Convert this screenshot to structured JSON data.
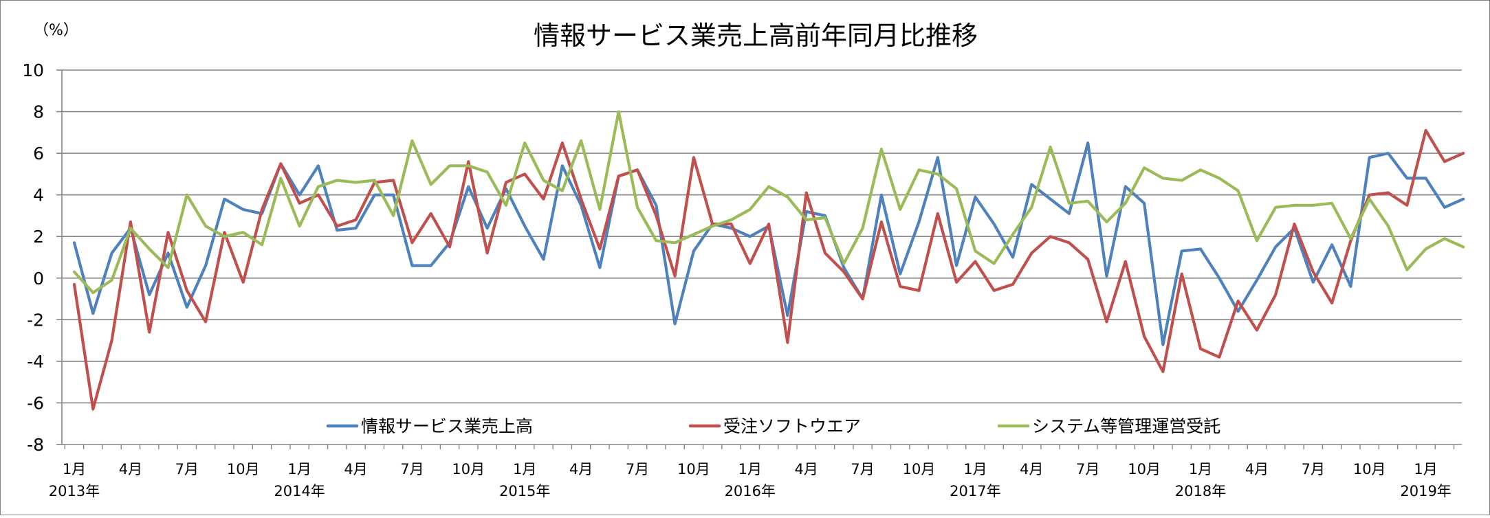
{
  "chart_data": {
    "type": "line",
    "title": "情報サービス業売上高前年同月比推移",
    "ylabel": "（%）",
    "xlabel": "",
    "ylim": [
      -8,
      10
    ],
    "yticks": [
      "10",
      "8",
      "6",
      "4",
      "2",
      "0",
      "-2",
      "-4",
      "-6",
      "-8"
    ],
    "grid": true,
    "legend_position": "bottom-inside",
    "x_tick_labels": [
      {
        "index": 0,
        "month": "1月",
        "year": "2013年"
      },
      {
        "index": 3,
        "month": "4月",
        "year": ""
      },
      {
        "index": 6,
        "month": "7月",
        "year": ""
      },
      {
        "index": 9,
        "month": "10月",
        "year": ""
      },
      {
        "index": 12,
        "month": "1月",
        "year": "2014年"
      },
      {
        "index": 15,
        "month": "4月",
        "year": ""
      },
      {
        "index": 18,
        "month": "7月",
        "year": ""
      },
      {
        "index": 21,
        "month": "10月",
        "year": ""
      },
      {
        "index": 24,
        "month": "1月",
        "year": "2015年"
      },
      {
        "index": 27,
        "month": "4月",
        "year": ""
      },
      {
        "index": 30,
        "month": "7月",
        "year": ""
      },
      {
        "index": 33,
        "month": "10月",
        "year": ""
      },
      {
        "index": 36,
        "month": "1月",
        "year": "2016年"
      },
      {
        "index": 39,
        "month": "4月",
        "year": ""
      },
      {
        "index": 42,
        "month": "7月",
        "year": ""
      },
      {
        "index": 45,
        "month": "10月",
        "year": ""
      },
      {
        "index": 48,
        "month": "1月",
        "year": "2017年"
      },
      {
        "index": 51,
        "month": "4月",
        "year": ""
      },
      {
        "index": 54,
        "month": "7月",
        "year": ""
      },
      {
        "index": 57,
        "month": "10月",
        "year": ""
      },
      {
        "index": 60,
        "month": "1月",
        "year": "2018年"
      },
      {
        "index": 63,
        "month": "4月",
        "year": ""
      },
      {
        "index": 66,
        "month": "7月",
        "year": ""
      },
      {
        "index": 69,
        "month": "10月",
        "year": ""
      },
      {
        "index": 72,
        "month": "1月",
        "year": "2019年"
      }
    ],
    "series": [
      {
        "name": "情報サービス業売上高",
        "color": "#4f81bd",
        "values": [
          1.7,
          -1.7,
          1.2,
          2.4,
          -0.8,
          1.2,
          -1.4,
          0.6,
          3.8,
          3.3,
          3.1,
          5.5,
          4.0,
          5.4,
          2.3,
          2.4,
          4.0,
          4.0,
          0.6,
          0.6,
          1.7,
          4.4,
          2.4,
          4.3,
          2.5,
          0.9,
          5.4,
          3.5,
          0.5,
          4.9,
          5.2,
          3.5,
          -2.2,
          1.3,
          2.6,
          2.4,
          2.0,
          2.5,
          -1.8,
          3.2,
          3.0,
          0.5,
          -1.0,
          4.0,
          0.2,
          2.7,
          5.8,
          0.6,
          3.9,
          2.6,
          1.0,
          4.5,
          3.8,
          3.1,
          6.5,
          0.1,
          4.4,
          3.6,
          -3.2,
          1.3,
          1.4,
          0.0,
          -1.6,
          -0.1,
          1.5,
          2.4,
          -0.2,
          1.6,
          -0.4,
          5.8,
          6.0,
          4.8,
          4.8,
          3.4,
          3.8
        ]
      },
      {
        "name": "受注ソフトウエア",
        "color": "#c0504d",
        "values": [
          -0.3,
          -6.3,
          -3.0,
          2.7,
          -2.6,
          2.2,
          -0.6,
          -2.1,
          2.2,
          -0.2,
          3.3,
          5.5,
          3.6,
          4.0,
          2.5,
          2.8,
          4.6,
          4.7,
          1.7,
          3.1,
          1.5,
          5.6,
          1.2,
          4.6,
          5.0,
          3.8,
          6.5,
          3.8,
          1.4,
          4.9,
          5.2,
          3.0,
          0.1,
          5.8,
          2.6,
          2.6,
          0.7,
          2.6,
          -3.1,
          4.1,
          1.2,
          0.3,
          -1.0,
          2.7,
          -0.4,
          -0.6,
          3.1,
          -0.2,
          0.8,
          -0.6,
          -0.3,
          1.2,
          2.0,
          1.7,
          0.9,
          -2.1,
          0.8,
          -2.8,
          -4.5,
          0.2,
          -3.4,
          -3.8,
          -1.1,
          -2.5,
          -0.8,
          2.6,
          0.3,
          -1.2,
          1.8,
          4.0,
          4.1,
          3.5,
          7.1,
          5.6,
          6.0
        ]
      },
      {
        "name": "システム等管理運営受託",
        "color": "#9bbb59",
        "values": [
          0.3,
          -0.7,
          -0.1,
          2.4,
          1.4,
          0.5,
          4.0,
          2.5,
          2.0,
          2.2,
          1.6,
          4.8,
          2.5,
          4.4,
          4.7,
          4.6,
          4.7,
          3.0,
          6.6,
          4.5,
          5.4,
          5.4,
          5.1,
          3.5,
          6.5,
          4.7,
          4.2,
          6.6,
          3.3,
          8.0,
          3.4,
          1.8,
          1.7,
          2.1,
          2.5,
          2.8,
          3.3,
          4.4,
          3.9,
          2.8,
          2.9,
          0.7,
          2.4,
          6.2,
          3.3,
          5.2,
          5.0,
          4.3,
          1.3,
          0.7,
          2.1,
          3.4,
          6.3,
          3.6,
          3.7,
          2.7,
          3.6,
          5.3,
          4.8,
          4.7,
          5.2,
          4.8,
          4.2,
          1.8,
          3.4,
          3.5,
          3.5,
          3.6,
          1.9,
          3.8,
          2.5,
          0.4,
          1.4,
          1.9,
          1.5
        ]
      }
    ]
  }
}
